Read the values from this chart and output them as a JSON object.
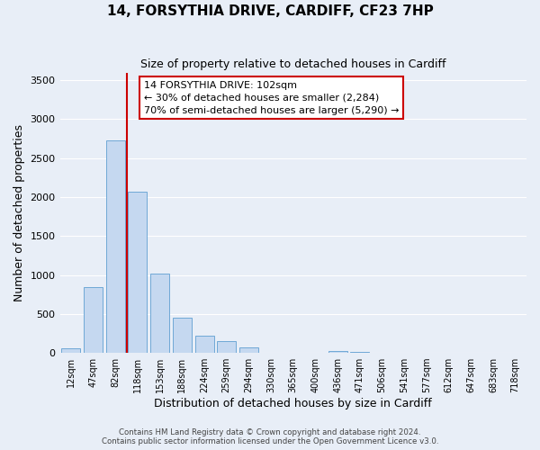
{
  "title": "14, FORSYTHIA DRIVE, CARDIFF, CF23 7HP",
  "subtitle": "Size of property relative to detached houses in Cardiff",
  "xlabel": "Distribution of detached houses by size in Cardiff",
  "ylabel": "Number of detached properties",
  "bar_labels": [
    "12sqm",
    "47sqm",
    "82sqm",
    "118sqm",
    "153sqm",
    "188sqm",
    "224sqm",
    "259sqm",
    "294sqm",
    "330sqm",
    "365sqm",
    "400sqm",
    "436sqm",
    "471sqm",
    "506sqm",
    "541sqm",
    "577sqm",
    "612sqm",
    "647sqm",
    "683sqm",
    "718sqm"
  ],
  "bar_values": [
    60,
    850,
    2730,
    2075,
    1020,
    455,
    215,
    150,
    65,
    0,
    0,
    0,
    25,
    15,
    0,
    0,
    0,
    5,
    0,
    0,
    0
  ],
  "bar_color": "#c5d8f0",
  "bar_edge_color": "#6fa8d6",
  "vline_color": "#cc0000",
  "vline_pos": 2.5,
  "ylim": [
    0,
    3600
  ],
  "yticks": [
    0,
    500,
    1000,
    1500,
    2000,
    2500,
    3000,
    3500
  ],
  "annotation_box_text": "14 FORSYTHIA DRIVE: 102sqm\n← 30% of detached houses are smaller (2,284)\n70% of semi-detached houses are larger (5,290) →",
  "annotation_box_color": "#cc0000",
  "footer_line1": "Contains HM Land Registry data © Crown copyright and database right 2024.",
  "footer_line2": "Contains public sector information licensed under the Open Government Licence v3.0.",
  "background_color": "#e8eef7",
  "plot_bg_color": "#e8eef7",
  "grid_color": "#ffffff",
  "title_fontsize": 11,
  "subtitle_fontsize": 9
}
